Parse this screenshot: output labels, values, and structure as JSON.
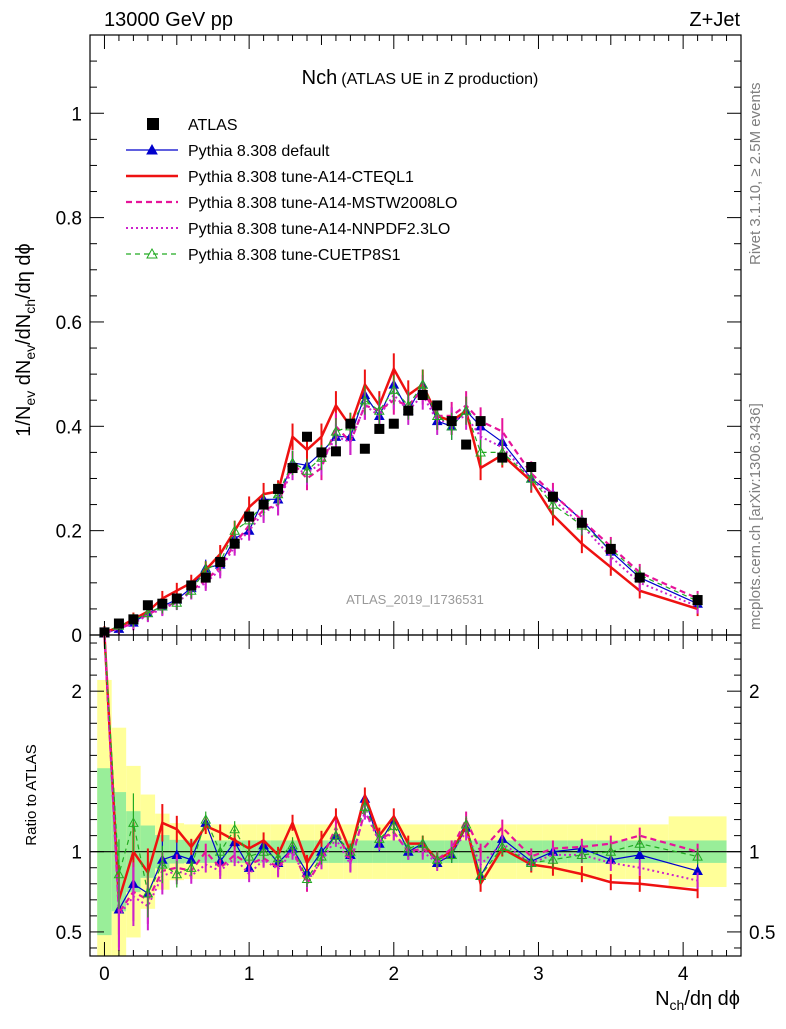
{
  "header": {
    "left": "13000 GeV pp",
    "right": "Z+Jet"
  },
  "side_labels": {
    "rivet": "Rivet 3.1.10, ≥ 2.5M events",
    "mcplots": "mcplots.cern.ch [arXiv:1306.3436]"
  },
  "colors": {
    "data": "#000000",
    "default": "#0000cc",
    "cteql1": "#ee1111",
    "mstw": "#e6139a",
    "nnpdf": "#cc22cc",
    "cuetp8s1": "#22aa22",
    "band_inner": "#99ee99",
    "band_outer": "#ffff99"
  },
  "chart_data": [
    {
      "type": "scatter",
      "title": {
        "main": "Nch",
        "sub": "(ATLAS UE in Z production)"
      },
      "analysis_label": "ATLAS_2019_I1736531",
      "ylabel": {
        "p1": "1/N",
        "s1": "ev",
        "p2": " dN",
        "s2": "ev",
        "p3": "/dN",
        "s3": "ch",
        "p4": "/dη dϕ"
      },
      "xlabel": "",
      "xlim": [
        -0.1,
        4.4
      ],
      "ylim": [
        0,
        1.15
      ],
      "y_ticks": [
        "0",
        "0.2",
        "0.4",
        "0.6",
        "0.8",
        "1"
      ],
      "grid": false,
      "legend_position": "top-left",
      "x": [
        0.0,
        0.1,
        0.2,
        0.3,
        0.4,
        0.5,
        0.6,
        0.7,
        0.8,
        0.9,
        1.0,
        1.1,
        1.2,
        1.3,
        1.4,
        1.5,
        1.6,
        1.7,
        1.8,
        1.9,
        2.0,
        2.1,
        2.2,
        2.3,
        2.4,
        2.5,
        2.6,
        2.75,
        2.95,
        3.1,
        3.3,
        3.5,
        3.7,
        4.1
      ],
      "series": [
        {
          "name": "ATLAS",
          "style": "data",
          "values": [
            0.005,
            0.022,
            0.03,
            0.057,
            0.06,
            0.07,
            0.095,
            0.11,
            0.14,
            0.175,
            0.227,
            0.25,
            0.28,
            0.32,
            0.38,
            0.35,
            0.352,
            0.405,
            0.357,
            0.395,
            0.405,
            0.43,
            0.46,
            0.44,
            0.41,
            0.365,
            0.41,
            0.34,
            0.322,
            0.265,
            0.215,
            0.165,
            0.11,
            0.067
          ]
        },
        {
          "name": "Pythia 8.308 default",
          "style": "default",
          "values": [
            0.003,
            0.012,
            0.024,
            0.042,
            0.055,
            0.068,
            0.09,
            0.128,
            0.135,
            0.185,
            0.2,
            0.26,
            0.26,
            0.33,
            0.325,
            0.35,
            0.38,
            0.38,
            0.46,
            0.42,
            0.48,
            0.43,
            0.48,
            0.41,
            0.4,
            0.43,
            0.4,
            0.37,
            0.3,
            0.27,
            0.22,
            0.16,
            0.11,
            0.06
          ]
        },
        {
          "name": "Pythia 8.308 tune-A14-CTEQL1",
          "style": "cteql1",
          "values": [
            0.005,
            0.015,
            0.03,
            0.045,
            0.07,
            0.085,
            0.1,
            0.125,
            0.155,
            0.2,
            0.245,
            0.27,
            0.275,
            0.38,
            0.355,
            0.38,
            0.44,
            0.4,
            0.48,
            0.44,
            0.51,
            0.46,
            0.48,
            0.42,
            0.41,
            0.43,
            0.32,
            0.345,
            0.295,
            0.23,
            0.175,
            0.13,
            0.085,
            0.05
          ]
        },
        {
          "name": "Pythia 8.308 tune-A14-MSTW2008LO",
          "style": "mstw",
          "values": [
            0.003,
            0.013,
            0.022,
            0.04,
            0.052,
            0.063,
            0.085,
            0.105,
            0.13,
            0.175,
            0.21,
            0.24,
            0.25,
            0.33,
            0.3,
            0.32,
            0.4,
            0.37,
            0.44,
            0.43,
            0.45,
            0.44,
            0.47,
            0.42,
            0.42,
            0.44,
            0.41,
            0.39,
            0.31,
            0.27,
            0.22,
            0.17,
            0.12,
            0.07
          ]
        },
        {
          "name": "Pythia 8.308 tune-A14-NNPDF2.3LO",
          "style": "nnpdf",
          "values": [
            0.003,
            0.012,
            0.022,
            0.038,
            0.05,
            0.062,
            0.083,
            0.1,
            0.125,
            0.17,
            0.2,
            0.235,
            0.25,
            0.32,
            0.31,
            0.33,
            0.38,
            0.37,
            0.44,
            0.42,
            0.46,
            0.43,
            0.46,
            0.41,
            0.41,
            0.42,
            0.38,
            0.36,
            0.3,
            0.26,
            0.21,
            0.15,
            0.1,
            0.055
          ]
        },
        {
          "name": "Pythia 8.308 tune-CUETP8S1",
          "style": "cuetp8s1",
          "values": [
            0.004,
            0.018,
            0.028,
            0.042,
            0.055,
            0.062,
            0.085,
            0.125,
            0.14,
            0.2,
            0.22,
            0.25,
            0.27,
            0.33,
            0.315,
            0.34,
            0.39,
            0.4,
            0.45,
            0.43,
            0.47,
            0.44,
            0.48,
            0.42,
            0.4,
            0.43,
            0.35,
            0.35,
            0.3,
            0.25,
            0.21,
            0.165,
            0.115,
            0.065
          ]
        }
      ]
    },
    {
      "type": "line",
      "ylabel": "Ratio to ATLAS",
      "xlabel": {
        "p1": "N",
        "s1": "ch",
        "p2": "/dη dϕ"
      },
      "xlim": [
        -0.1,
        4.4
      ],
      "ylim": [
        0.35,
        2.35
      ],
      "y_ticks": [
        "0.5",
        "1",
        "2"
      ],
      "x_ticks": [
        "0",
        "1",
        "2",
        "3",
        "4"
      ],
      "reference": 1.0,
      "x": [
        0.0,
        0.1,
        0.2,
        0.3,
        0.4,
        0.5,
        0.6,
        0.7,
        0.8,
        0.9,
        1.0,
        1.1,
        1.2,
        1.3,
        1.4,
        1.5,
        1.6,
        1.7,
        1.8,
        1.9,
        2.0,
        2.1,
        2.2,
        2.3,
        2.4,
        2.5,
        2.6,
        2.75,
        2.95,
        3.1,
        3.3,
        3.5,
        3.7,
        4.1
      ],
      "series": [
        {
          "name": "Pythia 8.308 default",
          "style": "default",
          "values": [
            2.4,
            0.64,
            0.8,
            0.74,
            0.95,
            0.98,
            0.95,
            1.18,
            0.94,
            1.06,
            0.9,
            1.04,
            0.93,
            1.02,
            0.87,
            1.0,
            1.1,
            0.98,
            1.33,
            1.05,
            1.2,
            1.0,
            1.05,
            0.93,
            0.98,
            1.15,
            0.85,
            1.08,
            0.94,
            1.0,
            1.02,
            0.95,
            0.98,
            0.88
          ]
        },
        {
          "name": "Pythia 8.308 tune-A14-CTEQL1",
          "style": "cteql1",
          "values": [
            2.4,
            0.7,
            1.0,
            0.87,
            1.18,
            1.14,
            1.03,
            1.16,
            1.12,
            1.07,
            1.02,
            1.07,
            0.98,
            1.18,
            0.93,
            1.08,
            1.22,
            1.0,
            1.35,
            1.1,
            1.22,
            1.05,
            1.05,
            0.95,
            1.0,
            1.16,
            0.8,
            1.02,
            0.92,
            0.9,
            0.86,
            0.81,
            0.8,
            0.76
          ]
        },
        {
          "name": "Pythia 8.308 tune-A14-MSTW2008LO",
          "style": "mstw",
          "values": [
            2.4,
            0.62,
            0.75,
            0.7,
            0.88,
            0.9,
            0.88,
            1.0,
            0.9,
            0.98,
            0.92,
            0.96,
            0.9,
            1.02,
            0.8,
            0.95,
            1.15,
            0.93,
            1.25,
            1.08,
            1.12,
            1.0,
            1.02,
            0.95,
            1.02,
            1.2,
            1.0,
            1.15,
            0.97,
            1.02,
            1.03,
            1.05,
            1.1,
            1.0
          ]
        },
        {
          "name": "Pythia 8.308 tune-A14-NNPDF2.3LO",
          "style": "nnpdf",
          "values": [
            2.4,
            0.6,
            0.72,
            0.66,
            0.85,
            0.88,
            0.85,
            0.92,
            0.88,
            0.96,
            0.86,
            0.95,
            0.89,
            1.0,
            0.82,
            0.94,
            1.08,
            0.92,
            1.25,
            1.06,
            1.12,
            1.0,
            1.0,
            0.93,
            1.0,
            1.12,
            0.92,
            1.05,
            0.93,
            0.98,
            0.98,
            0.93,
            0.9,
            0.82
          ]
        },
        {
          "name": "Pythia 8.308 tune-CUETP8S1",
          "style": "cuetp8s1",
          "values": [
            2.4,
            0.86,
            1.18,
            0.74,
            0.92,
            0.86,
            0.9,
            1.2,
            1.0,
            1.14,
            0.97,
            1.0,
            0.96,
            1.04,
            0.83,
            0.97,
            1.1,
            1.0,
            1.28,
            1.08,
            1.16,
            1.02,
            1.05,
            0.95,
            0.98,
            1.17,
            0.85,
            1.03,
            0.93,
            0.95,
            0.98,
            1.0,
            1.05,
            0.97
          ]
        }
      ]
    }
  ]
}
